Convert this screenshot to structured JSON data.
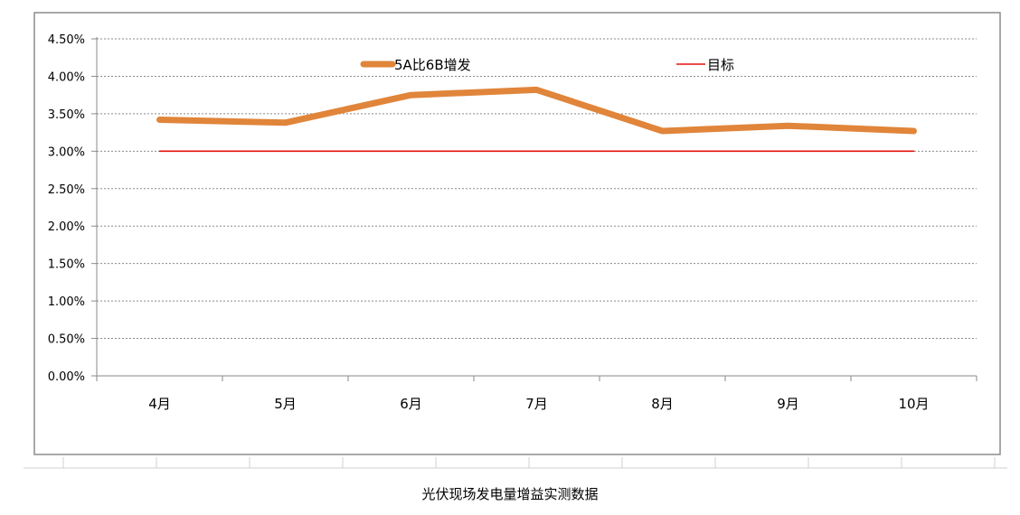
{
  "caption": "光伏现场发电量增益实测数据",
  "chart_data": {
    "type": "line",
    "categories": [
      "4月",
      "5月",
      "6月",
      "7月",
      "8月",
      "9月",
      "10月"
    ],
    "series": [
      {
        "name": "5A比6B增发",
        "values": [
          0.0342,
          0.0338,
          0.0375,
          0.0382,
          0.0327,
          0.0334,
          0.0327
        ],
        "color": "#E0853A"
      },
      {
        "name": "目标",
        "values": [
          0.03,
          0.03,
          0.03,
          0.03,
          0.03,
          0.03,
          0.03
        ],
        "color": "#E3120B"
      }
    ],
    "ylim": [
      0,
      0.045
    ],
    "yticks": [
      "0.00%",
      "0.50%",
      "1.00%",
      "1.50%",
      "2.00%",
      "2.50%",
      "3.00%",
      "3.50%",
      "4.00%",
      "4.50%"
    ],
    "grid": true,
    "legend": "top"
  }
}
